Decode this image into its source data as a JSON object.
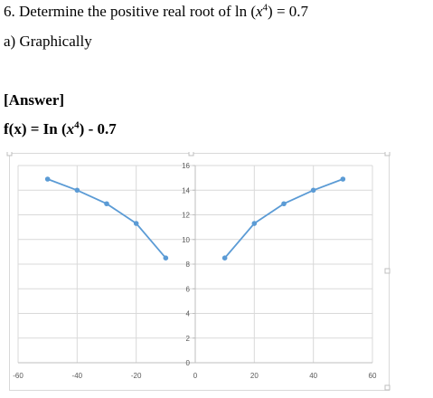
{
  "question": {
    "title_prefix": "6. Determine the positive real root of ln (",
    "title_var": "x",
    "title_exp": "4",
    "title_suffix": ") = 0.7",
    "part": "a) Graphically"
  },
  "answer": {
    "heading": "[Answer]",
    "func_prefix": "f(x) = In (",
    "func_var": "x",
    "func_exp": "4",
    "func_suffix": ") - 0.7"
  },
  "chart_data": {
    "type": "scatter",
    "title": "",
    "xlabel": "",
    "ylabel": "",
    "xlim": [
      -60,
      60
    ],
    "ylim": [
      0,
      16
    ],
    "xticks": [
      -60,
      -40,
      -20,
      0,
      20,
      40,
      60
    ],
    "yticks": [
      0,
      2,
      4,
      6,
      8,
      10,
      12,
      14,
      16
    ],
    "grid": true,
    "legend": "none",
    "colors": {
      "series": "#5b9bd5",
      "grid": "#d9d9d9",
      "axis": "#bfbfbf",
      "tick_label": "#595959"
    },
    "series": [
      {
        "x": [
          -50,
          -40,
          -30,
          -20,
          -10
        ],
        "y": [
          14.9,
          14.0,
          12.9,
          11.3,
          8.5
        ]
      },
      {
        "x": [
          10,
          20,
          30,
          40,
          50
        ],
        "y": [
          8.5,
          11.3,
          12.9,
          14.0,
          14.9
        ]
      }
    ]
  }
}
